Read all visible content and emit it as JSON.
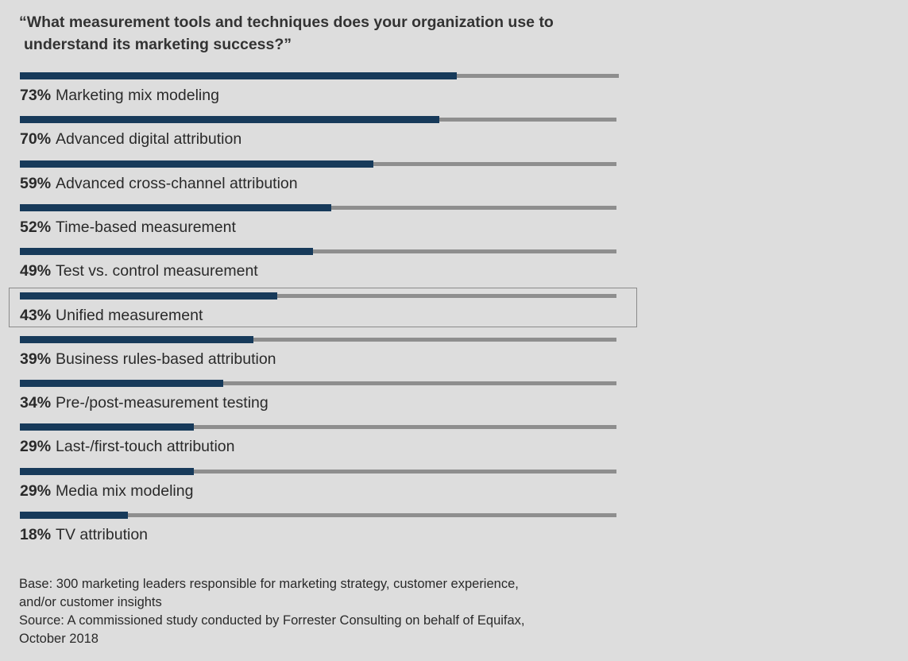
{
  "title": {
    "line1": "“What measurement tools and techniques does your organization use to",
    "line2": "understand its marketing success?”"
  },
  "chart_data": {
    "type": "bar",
    "orientation": "horizontal",
    "value_format": "percent",
    "xlim": [
      0,
      100
    ],
    "categories": [
      "Marketing mix modeling",
      "Advanced digital attribution",
      "Advanced cross-channel attribution",
      "Time-based measurement",
      "Test vs. control measurement",
      "Unified measurement",
      "Business rules-based attribution",
      "Pre-/post-measurement testing",
      "Last-/first-touch attribution",
      "Media mix modeling",
      "TV attribution"
    ],
    "values": [
      73,
      70,
      59,
      52,
      49,
      43,
      39,
      34,
      29,
      29,
      18
    ],
    "highlighted_category": "Unified measurement",
    "colors": {
      "bar": "#173a5a",
      "track": "#8e8e8e",
      "background": "#dddddd",
      "highlight_border": "#8a8a8a"
    }
  },
  "footnote": {
    "base_line1": "Base: 300 marketing leaders responsible for marketing strategy, customer experience,",
    "base_line2": "and/or customer insights",
    "source_line1": "Source: A commissioned study conducted by Forrester Consulting on behalf of Equifax,",
    "source_line2": "October 2018"
  }
}
